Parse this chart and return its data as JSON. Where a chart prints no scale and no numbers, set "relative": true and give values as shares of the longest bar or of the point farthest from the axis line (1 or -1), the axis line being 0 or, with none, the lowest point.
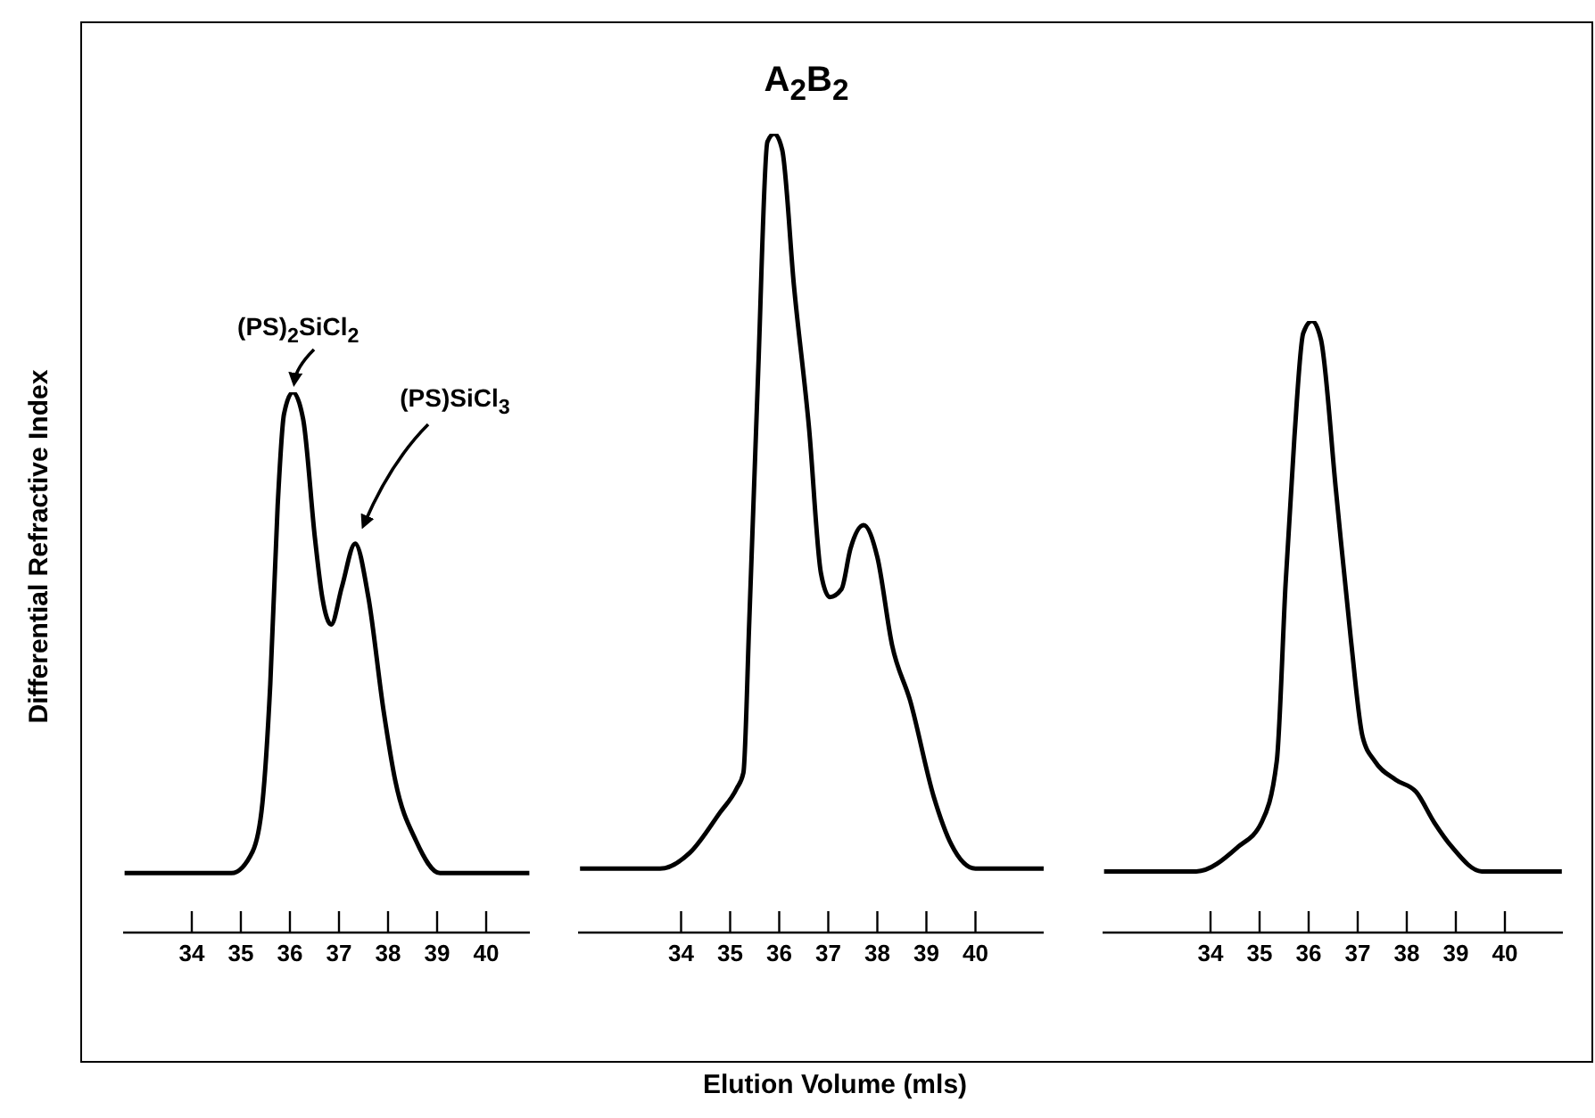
{
  "chart_data": [
    {
      "type": "line",
      "ylabel": "Differential Refractive Index",
      "relative": true,
      "tick_labels": "x",
      "color": "#000000",
      "xlim": [
        32.6,
        40.9
      ],
      "xticks": [
        34,
        35,
        36,
        37,
        38,
        39,
        40
      ],
      "x": [
        32.63,
        34.81,
        35.24,
        35.44,
        35.6,
        35.75,
        35.88,
        36.06,
        36.27,
        36.51,
        36.66,
        36.84,
        37.06,
        37.33,
        37.6,
        37.91,
        38.15,
        38.57,
        39.06,
        40.88
      ],
      "values": [
        0.11,
        0.11,
        0.15,
        0.24,
        0.46,
        0.79,
        0.96,
        1,
        0.95,
        0.73,
        0.62,
        0.57,
        0.64,
        0.72,
        0.62,
        0.41,
        0.28,
        0.17,
        0.11,
        0.11
      ],
      "annotations": [
        {
          "text": "(PS)$_{2}$SiCl$_{2}$",
          "x": 36.06,
          "y": 1
        },
        "(PS)SiCl$_{3}$"
      ]
    },
    {
      "type": "line",
      "title": "A$_{2}$B$_{2}$",
      "xlabel": "Elution Volume (mls)",
      "relative": true,
      "tick_labels": "x",
      "color": "#000000",
      "xlim": [
        31.9,
        41.4
      ],
      "xticks": [
        34,
        35,
        36,
        37,
        38,
        39,
        40
      ],
      "x": [
        31.94,
        33.57,
        34.18,
        34.79,
        35.13,
        35.27,
        35.39,
        35.57,
        35.76,
        35.9,
        36.06,
        36.3,
        36.61,
        36.85,
        37.03,
        37.27,
        37.45,
        37.72,
        38.0,
        38.3,
        38.67,
        39.15,
        39.51,
        40.0,
        41.39
      ],
      "values": [
        0.08,
        0.08,
        0.1,
        0.15,
        0.18,
        0.2,
        0.39,
        0.7,
        0.99,
        1,
        0.98,
        0.81,
        0.63,
        0.45,
        0.42,
        0.43,
        0.48,
        0.51,
        0.47,
        0.36,
        0.29,
        0.17,
        0.11,
        0.08,
        0.08
      ]
    },
    {
      "type": "line",
      "relative": true,
      "tick_labels": "x",
      "color": "#000000",
      "xlim": [
        31.8,
        41.2
      ],
      "xticks": [
        34,
        35,
        36,
        37,
        38,
        39,
        40
      ],
      "x": [
        31.83,
        33.71,
        34.56,
        35.04,
        35.35,
        35.53,
        35.71,
        35.89,
        36.07,
        36.25,
        36.56,
        36.86,
        37.1,
        37.35,
        37.77,
        38.19,
        38.56,
        38.92,
        39.53,
        41.16
      ],
      "values": [
        0.1,
        0.1,
        0.14,
        0.18,
        0.28,
        0.57,
        0.81,
        0.98,
        1,
        0.97,
        0.72,
        0.48,
        0.32,
        0.28,
        0.25,
        0.23,
        0.18,
        0.14,
        0.1,
        0.1
      ]
    }
  ]
}
